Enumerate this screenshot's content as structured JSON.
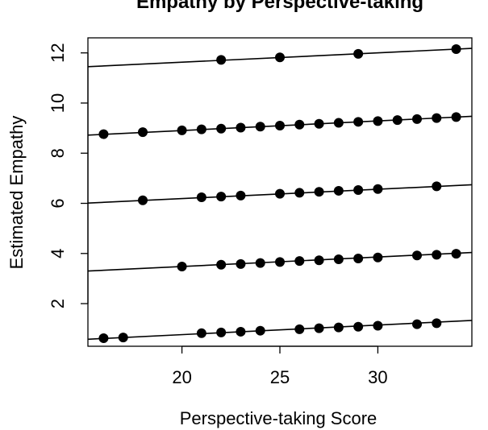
{
  "chart_data": {
    "type": "scatter",
    "title": "Empathy by Perspective-taking",
    "xlabel": "Perspective-taking Score",
    "ylabel": "Estimated Empathy",
    "xlim": [
      15.2,
      34.8
    ],
    "ylim": [
      0.3,
      12.6
    ],
    "x_ticks": [
      20,
      25,
      30
    ],
    "y_ticks": [
      2,
      4,
      6,
      8,
      10,
      12
    ],
    "grid": false,
    "legend": "none",
    "colors": {
      "points": "#000000",
      "lines": "#000000",
      "axes": "#000000"
    },
    "series": [
      {
        "points": [
          [
            16,
            0.62
          ],
          [
            17,
            0.65
          ],
          [
            21,
            0.82
          ],
          [
            22,
            0.85
          ],
          [
            23,
            0.88
          ],
          [
            24,
            0.92
          ],
          [
            26,
            0.98
          ],
          [
            27,
            1.02
          ],
          [
            28,
            1.05
          ],
          [
            29,
            1.08
          ],
          [
            30,
            1.12
          ],
          [
            32,
            1.18
          ],
          [
            33,
            1.22
          ]
        ],
        "fit_line": [
          [
            15.2,
            0.58
          ],
          [
            34.8,
            1.33
          ]
        ]
      },
      {
        "points": [
          [
            20,
            3.48
          ],
          [
            22,
            3.55
          ],
          [
            23,
            3.58
          ],
          [
            24,
            3.62
          ],
          [
            25,
            3.66
          ],
          [
            26,
            3.7
          ],
          [
            27,
            3.73
          ],
          [
            28,
            3.77
          ],
          [
            29,
            3.8
          ],
          [
            30,
            3.84
          ],
          [
            32,
            3.92
          ],
          [
            33,
            3.95
          ],
          [
            34,
            3.99
          ]
        ],
        "fit_line": [
          [
            15.2,
            3.3
          ],
          [
            34.8,
            4.04
          ]
        ]
      },
      {
        "points": [
          [
            18,
            6.12
          ],
          [
            21,
            6.24
          ],
          [
            22,
            6.27
          ],
          [
            23,
            6.31
          ],
          [
            25,
            6.38
          ],
          [
            26,
            6.42
          ],
          [
            27,
            6.46
          ],
          [
            28,
            6.5
          ],
          [
            29,
            6.53
          ],
          [
            30,
            6.57
          ],
          [
            33,
            6.68
          ]
        ],
        "fit_line": [
          [
            15.2,
            6.01
          ],
          [
            34.8,
            6.74
          ]
        ]
      },
      {
        "points": [
          [
            16,
            8.76
          ],
          [
            18,
            8.84
          ],
          [
            20,
            8.91
          ],
          [
            21,
            8.95
          ],
          [
            22,
            8.98
          ],
          [
            23,
            9.02
          ],
          [
            24,
            9.06
          ],
          [
            25,
            9.1
          ],
          [
            26,
            9.14
          ],
          [
            27,
            9.17
          ],
          [
            28,
            9.21
          ],
          [
            29,
            9.25
          ],
          [
            30,
            9.28
          ],
          [
            31,
            9.32
          ],
          [
            32,
            9.36
          ],
          [
            33,
            9.4
          ],
          [
            34,
            9.44
          ]
        ],
        "fit_line": [
          [
            15.2,
            8.72
          ],
          [
            34.8,
            9.47
          ]
        ]
      },
      {
        "points": [
          [
            22,
            11.72
          ],
          [
            25,
            11.82
          ],
          [
            29,
            11.96
          ],
          [
            34,
            12.15
          ]
        ],
        "fit_line": [
          [
            15.2,
            11.45
          ],
          [
            34.8,
            12.18
          ]
        ]
      }
    ]
  }
}
